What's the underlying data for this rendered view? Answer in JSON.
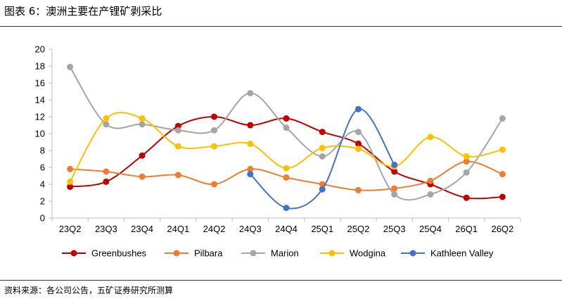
{
  "title": "图表 6：澳洲主要在产锂矿剥采比",
  "source": "资料来源：各公司公告，五矿证券研究所测算",
  "chart_data": {
    "type": "line",
    "title": "图表 6：澳洲主要在产锂矿剥采比",
    "xlabel": "",
    "ylabel": "",
    "ylim": [
      0,
      20
    ],
    "yticks": [
      0,
      2,
      4,
      6,
      8,
      10,
      12,
      14,
      16,
      18,
      20
    ],
    "grid": false,
    "smooth": true,
    "legend": "bottom",
    "categories": [
      "23Q2",
      "23Q3",
      "23Q4",
      "24Q1",
      "24Q2",
      "24Q3",
      "24Q4",
      "25Q1",
      "25Q2",
      "25Q3",
      "25Q4",
      "26Q1",
      "26Q2"
    ],
    "series": [
      {
        "name": "Greenbushes",
        "color": "#C00000",
        "values": [
          3.7,
          4.3,
          7.4,
          10.9,
          12.0,
          11.0,
          11.8,
          10.2,
          8.8,
          5.5,
          4.0,
          2.4,
          2.5
        ]
      },
      {
        "name": "Pilbara",
        "color": "#ED7D31",
        "values": [
          5.8,
          5.5,
          4.9,
          5.1,
          4.0,
          5.8,
          4.8,
          4.0,
          3.3,
          3.5,
          4.4,
          6.7,
          5.2
        ]
      },
      {
        "name": "Marion",
        "color": "#A5A5A5",
        "values": [
          17.9,
          11.1,
          11.1,
          10.4,
          10.4,
          14.8,
          10.7,
          7.3,
          10.2,
          2.8,
          2.8,
          5.4,
          11.8
        ]
      },
      {
        "name": "Wodgina",
        "color": "#FFC000",
        "values": [
          4.3,
          11.8,
          11.8,
          8.5,
          8.5,
          8.8,
          5.9,
          8.3,
          8.2,
          6.1,
          9.6,
          7.3,
          8.1
        ]
      },
      {
        "name": "Kathleen Valley",
        "color": "#4472C4",
        "values": [
          null,
          null,
          null,
          null,
          null,
          5.2,
          1.2,
          3.4,
          12.9,
          6.3,
          null,
          null,
          null
        ]
      }
    ]
  }
}
